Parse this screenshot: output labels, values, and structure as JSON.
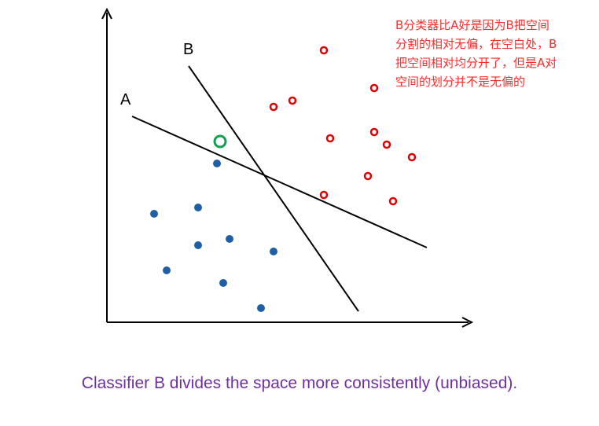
{
  "labels": {
    "classifier_a": "A",
    "classifier_b": "B"
  },
  "note": "B分类器比A好是因为B把空间\n分割的相对无偏，在空白处，B\n把空间相对均分开了，但是A对\n空间的划分并不是无偏的",
  "caption": "Classifier B divides the space more consistently (unbiased).",
  "colors": {
    "axis": "#000000",
    "blue_point": "#1f5fa8",
    "red_point": "#e00000",
    "new_point": "#10a050",
    "note": "#ff2a2a",
    "caption": "#7030a0"
  }
}
